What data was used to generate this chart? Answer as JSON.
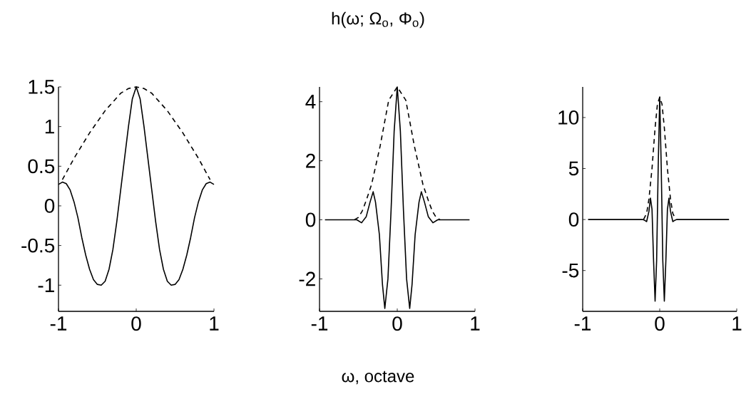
{
  "chart_data": [
    {
      "type": "line",
      "xlim": [
        -1,
        1
      ],
      "ylim": [
        -1.33,
        1.5
      ],
      "xticks": [
        -1,
        0,
        1
      ],
      "yticks": [
        -1,
        -0.5,
        0,
        0.5,
        1,
        1.5
      ],
      "series": [
        {
          "color": "#000000",
          "line_style": "solid",
          "x": [
            -1,
            -0.95,
            -0.9,
            -0.85,
            -0.8,
            -0.75,
            -0.7,
            -0.65,
            -0.6,
            -0.55,
            -0.5,
            -0.45,
            -0.4,
            -0.35,
            -0.3,
            -0.25,
            -0.2,
            -0.15,
            -0.1,
            -0.05,
            0,
            0.05,
            0.1,
            0.15,
            0.2,
            0.25,
            0.3,
            0.35,
            0.4,
            0.45,
            0.5,
            0.55,
            0.6,
            0.65,
            0.7,
            0.75,
            0.8,
            0.85,
            0.9,
            0.95,
            1
          ],
          "values": [
            0.27,
            0.3,
            0.28,
            0.2,
            0.05,
            -0.15,
            -0.4,
            -0.62,
            -0.8,
            -0.93,
            -0.99,
            -1.0,
            -0.95,
            -0.8,
            -0.55,
            -0.2,
            0.2,
            0.6,
            1.0,
            1.35,
            1.5,
            1.35,
            1.0,
            0.6,
            0.2,
            -0.2,
            -0.55,
            -0.8,
            -0.95,
            -1.0,
            -0.99,
            -0.93,
            -0.8,
            -0.62,
            -0.4,
            -0.15,
            0.05,
            0.2,
            0.28,
            0.3,
            0.27
          ]
        },
        {
          "color": "#000000",
          "line_style": "dashed",
          "x": [
            -0.95,
            -0.8,
            -0.6,
            -0.4,
            -0.2,
            -0.1,
            0,
            0.1,
            0.2,
            0.4,
            0.6,
            0.8,
            0.95
          ],
          "values": [
            0.33,
            0.6,
            0.92,
            1.2,
            1.42,
            1.48,
            1.5,
            1.48,
            1.42,
            1.2,
            0.92,
            0.6,
            0.33
          ]
        }
      ]
    },
    {
      "type": "line",
      "title": "h(ω; Ω$_{o}$, Φ$_{o}$)",
      "xlabel": "ω, octave",
      "xlim": [
        -1,
        1
      ],
      "ylim": [
        -3.1,
        4.5
      ],
      "xticks": [
        -1,
        0,
        1
      ],
      "yticks": [
        -2,
        0,
        2,
        4
      ],
      "series": [
        {
          "color": "#000000",
          "line_style": "solid",
          "x": [
            -0.93,
            -0.6,
            -0.52,
            -0.46,
            -0.4,
            -0.35,
            -0.31,
            -0.28,
            -0.23,
            -0.19,
            -0.16,
            -0.12,
            -0.08,
            -0.04,
            0,
            0.04,
            0.08,
            0.12,
            0.16,
            0.19,
            0.23,
            0.28,
            0.31,
            0.35,
            0.4,
            0.46,
            0.52,
            0.6,
            0.93
          ],
          "values": [
            0,
            0,
            0,
            -0.1,
            0.1,
            0.6,
            0.95,
            0.6,
            -0.5,
            -2.2,
            -3.0,
            -2.0,
            0.3,
            3.0,
            4.5,
            3.0,
            0.3,
            -2.0,
            -3.0,
            -2.2,
            -0.5,
            0.6,
            0.95,
            0.6,
            0.1,
            -0.1,
            0,
            0,
            0
          ]
        },
        {
          "color": "#000000",
          "line_style": "dashed",
          "x": [
            -0.55,
            -0.5,
            -0.45,
            -0.4,
            -0.33,
            -0.22,
            -0.11,
            0,
            0.11,
            0.22,
            0.33,
            0.4,
            0.45,
            0.5,
            0.55
          ],
          "values": [
            0,
            0.08,
            0.3,
            0.65,
            1.2,
            2.5,
            4.05,
            4.5,
            4.05,
            2.5,
            1.2,
            0.65,
            0.3,
            0.08,
            0
          ]
        }
      ]
    },
    {
      "type": "line",
      "xlim": [
        -1,
        1
      ],
      "ylim": [
        -9,
        13
      ],
      "xticks": [
        -1,
        0,
        1
      ],
      "yticks": [
        -5,
        0,
        5,
        10
      ],
      "series": [
        {
          "color": "#000000",
          "line_style": "solid",
          "x": [
            -0.93,
            -0.22,
            -0.19,
            -0.17,
            -0.14,
            -0.12,
            -0.1,
            -0.08,
            -0.06,
            -0.04,
            -0.02,
            0,
            0.02,
            0.04,
            0.06,
            0.08,
            0.1,
            0.12,
            0.14,
            0.17,
            0.19,
            0.22,
            0.9
          ],
          "values": [
            0,
            0,
            -0.1,
            -0.2,
            0.8,
            2.1,
            1.0,
            -4,
            -8,
            -4,
            5,
            12,
            5,
            -4,
            -8,
            -4,
            1.0,
            2.1,
            0.8,
            -0.2,
            -0.1,
            0,
            0
          ]
        },
        {
          "color": "#000000",
          "line_style": "dashed",
          "x": [
            -0.21,
            -0.17,
            -0.14,
            -0.1,
            -0.06,
            -0.03,
            0,
            0.03,
            0.06,
            0.1,
            0.14,
            0.17,
            0.21
          ],
          "values": [
            0,
            0.6,
            2.0,
            5.0,
            9.0,
            11.3,
            12,
            11.3,
            9.0,
            5.0,
            2.0,
            0.6,
            0
          ]
        }
      ]
    }
  ]
}
